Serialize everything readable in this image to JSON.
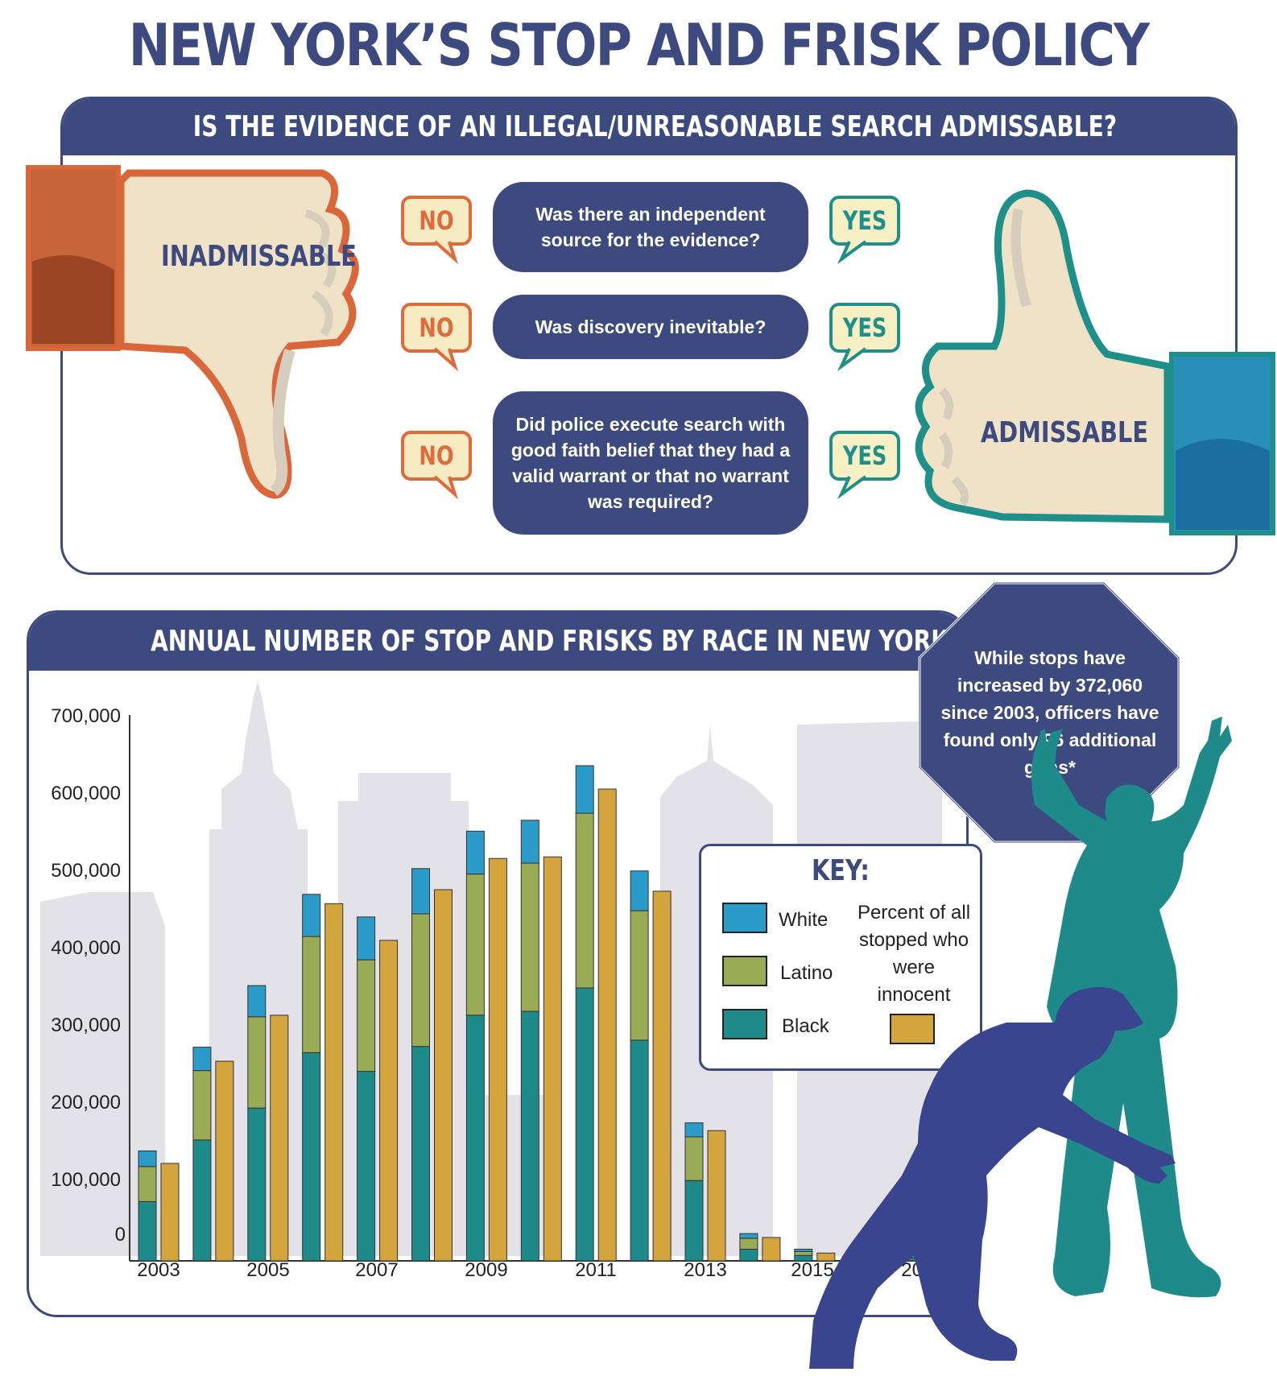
{
  "title": "NEW YORK’S STOP AND FRISK POLICY",
  "flowchart": {
    "header": "IS THE EVIDENCE OF AN ILLEGAL/UNREASONABLE SEARCH ADMISSABLE?",
    "left_label": "INADMISSABLE",
    "right_label": "ADMISSABLE",
    "questions": [
      "Was there an independent source for the evidence?",
      "Was discovery inevitable?",
      "Did police execute search with good faith belief that they had a valid warrant or that no warrant was required?"
    ],
    "no_label": "NO",
    "yes_label": "YES",
    "colors": {
      "no": "#e06a3a",
      "yes": "#1f8f8a",
      "navy": "#3d4a7f"
    }
  },
  "chart_header": "ANNUAL NUMBER OF STOP AND FRISKS BY RACE IN NEW YORK CITY",
  "callout": "While stops have increased by 372,060 since 2003, officers have found only 96 additional guns*",
  "key": {
    "title": "KEY:",
    "white": "White",
    "latino": "Latino",
    "black": "Black",
    "innocent": "Percent of all stopped who were innocent"
  },
  "chart_data": {
    "type": "bar",
    "title": "ANNUAL NUMBER OF STOP AND FRISKS BY RACE IN NEW YORK CITY",
    "xlabel": "",
    "ylabel": "",
    "ylim": [
      0,
      700000
    ],
    "yticks": [
      "700,000",
      "600,000",
      "500,000",
      "400,000",
      "300,000",
      "200,000",
      "100,000",
      "0"
    ],
    "xticks": [
      "2003",
      "2005",
      "2007",
      "2009",
      "2011",
      "2013",
      "2015",
      "2017"
    ],
    "categories": [
      "2003",
      "2004",
      "2005",
      "2006",
      "2007",
      "2008",
      "2009",
      "2010",
      "2011",
      "2012",
      "2013",
      "2014",
      "2015",
      "2016",
      "2017"
    ],
    "stacked_series": [
      {
        "name": "Black",
        "color": "#1f8a8a",
        "values": [
          76000,
          155000,
          196000,
          267000,
          243000,
          275000,
          315000,
          320000,
          350000,
          283000,
          103000,
          15000,
          7000,
          5000,
          4000
        ]
      },
      {
        "name": "Latino",
        "color": "#9aab55",
        "values": [
          45000,
          89000,
          117000,
          149000,
          143000,
          170000,
          181000,
          190000,
          224000,
          166000,
          56000,
          14000,
          5000,
          4000,
          3000
        ]
      },
      {
        "name": "White",
        "color": "#2b9cc9",
        "values": [
          20000,
          30000,
          40000,
          54000,
          55000,
          58000,
          55000,
          55000,
          61000,
          51000,
          18000,
          6000,
          3000,
          3000,
          2000
        ]
      }
    ],
    "innocent_series": {
      "name": "Percent of all stopped who were innocent",
      "color": "#d4a53c",
      "values": [
        125000,
        256000,
        315000,
        458000,
        411000,
        476000,
        516000,
        518000,
        605000,
        474000,
        167000,
        30000,
        10000,
        7000,
        6000
      ]
    },
    "grid": false
  }
}
